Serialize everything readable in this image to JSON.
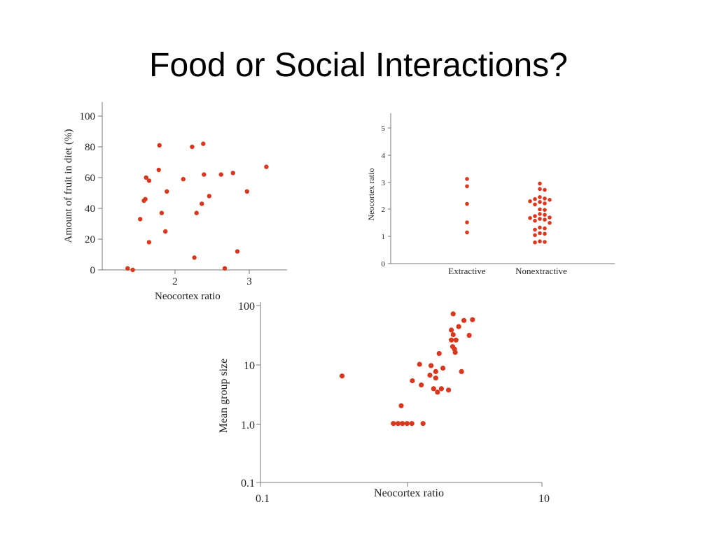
{
  "slide": {
    "title": "Food or Social Interactions?"
  },
  "colors": {
    "marker": "#d9381e",
    "axis": "#777777",
    "text": "#222222",
    "background": "#ffffff"
  },
  "chart_data": [
    {
      "type": "scatter",
      "title": "",
      "xlabel": "Neocortex ratio",
      "ylabel": "Amount of fruit in diet (%)",
      "xlim": [
        1.0,
        3.5
      ],
      "ylim": [
        0,
        110
      ],
      "xticks": [
        2,
        3
      ],
      "yticks": [
        0,
        20,
        40,
        60,
        80,
        100
      ],
      "grid": false,
      "points": [
        {
          "x": 1.36,
          "y": 1
        },
        {
          "x": 1.43,
          "y": 0
        },
        {
          "x": 1.53,
          "y": 33
        },
        {
          "x": 1.58,
          "y": 45
        },
        {
          "x": 1.6,
          "y": 46
        },
        {
          "x": 1.61,
          "y": 60
        },
        {
          "x": 1.65,
          "y": 58
        },
        {
          "x": 1.65,
          "y": 18
        },
        {
          "x": 1.78,
          "y": 65
        },
        {
          "x": 1.79,
          "y": 81
        },
        {
          "x": 1.82,
          "y": 37
        },
        {
          "x": 1.87,
          "y": 25
        },
        {
          "x": 1.89,
          "y": 51
        },
        {
          "x": 2.11,
          "y": 59
        },
        {
          "x": 2.23,
          "y": 80
        },
        {
          "x": 2.26,
          "y": 8
        },
        {
          "x": 2.29,
          "y": 37
        },
        {
          "x": 2.36,
          "y": 43
        },
        {
          "x": 2.38,
          "y": 82
        },
        {
          "x": 2.39,
          "y": 62
        },
        {
          "x": 2.46,
          "y": 48
        },
        {
          "x": 2.62,
          "y": 62
        },
        {
          "x": 2.67,
          "y": 1
        },
        {
          "x": 2.78,
          "y": 63
        },
        {
          "x": 2.84,
          "y": 12
        },
        {
          "x": 2.97,
          "y": 51
        },
        {
          "x": 3.23,
          "y": 67
        }
      ]
    },
    {
      "type": "scatter",
      "title": "",
      "xlabel": "",
      "ylabel": "Neocortex ratio",
      "categories": [
        "Extractive",
        "Nonextractive"
      ],
      "ylim": [
        0,
        5.5
      ],
      "yticks": [
        0,
        1,
        2,
        3,
        4,
        5
      ],
      "grid": false,
      "series": [
        {
          "category": "Extractive",
          "values": [
            3.12,
            2.85,
            2.2,
            1.52,
            1.15
          ]
        },
        {
          "category": "Nonextractive",
          "values": [
            2.95,
            2.75,
            2.72,
            2.45,
            2.4,
            2.38,
            2.35,
            2.3,
            2.27,
            2.22,
            2.18,
            2.0,
            1.98,
            1.83,
            1.8,
            1.75,
            1.7,
            1.68,
            1.65,
            1.62,
            1.58,
            1.5,
            1.33,
            1.3,
            1.25,
            1.12,
            1.1,
            1.05,
            0.82,
            0.8,
            0.78
          ]
        }
      ]
    },
    {
      "type": "scatter",
      "title": "",
      "xlabel": "Neocortex ratio",
      "ylabel": "Mean group size",
      "xscale": "log",
      "yscale": "log",
      "xlim": [
        0.1,
        10
      ],
      "ylim": [
        0.1,
        100
      ],
      "xticks": [
        {
          "value": 0.1,
          "label": "0.1"
        },
        {
          "value": 10,
          "label": "10"
        }
      ],
      "yticks": [
        {
          "value": 0.1,
          "label": "0.1"
        },
        {
          "value": 1,
          "label": "1.0"
        },
        {
          "value": 10,
          "label": "10"
        },
        {
          "value": 100,
          "label": "100"
        }
      ],
      "grid": false,
      "points": [
        {
          "x": 0.38,
          "y": 6.4
        },
        {
          "x": 0.88,
          "y": 1.0
        },
        {
          "x": 0.95,
          "y": 1.0
        },
        {
          "x": 1.02,
          "y": 1.0
        },
        {
          "x": 1.1,
          "y": 1.0
        },
        {
          "x": 1.19,
          "y": 1.0
        },
        {
          "x": 1.43,
          "y": 1.0
        },
        {
          "x": 1.0,
          "y": 2.0
        },
        {
          "x": 1.2,
          "y": 5.3
        },
        {
          "x": 1.35,
          "y": 10.1
        },
        {
          "x": 1.39,
          "y": 4.5
        },
        {
          "x": 1.6,
          "y": 6.6
        },
        {
          "x": 1.63,
          "y": 9.6
        },
        {
          "x": 1.7,
          "y": 3.9
        },
        {
          "x": 1.76,
          "y": 5.9
        },
        {
          "x": 1.76,
          "y": 7.6
        },
        {
          "x": 1.81,
          "y": 3.4
        },
        {
          "x": 1.86,
          "y": 15.4
        },
        {
          "x": 1.93,
          "y": 3.9
        },
        {
          "x": 1.98,
          "y": 8.7
        },
        {
          "x": 2.17,
          "y": 3.7
        },
        {
          "x": 2.27,
          "y": 26.1
        },
        {
          "x": 2.27,
          "y": 38.6
        },
        {
          "x": 2.32,
          "y": 20.2
        },
        {
          "x": 2.34,
          "y": 32.2
        },
        {
          "x": 2.39,
          "y": 18.3
        },
        {
          "x": 2.42,
          "y": 16.1
        },
        {
          "x": 2.34,
          "y": 72.5
        },
        {
          "x": 2.45,
          "y": 26.1
        },
        {
          "x": 2.56,
          "y": 44.1
        },
        {
          "x": 2.68,
          "y": 7.6
        },
        {
          "x": 2.79,
          "y": 56.0
        },
        {
          "x": 3.04,
          "y": 31.3
        },
        {
          "x": 3.21,
          "y": 57.7
        }
      ]
    }
  ]
}
